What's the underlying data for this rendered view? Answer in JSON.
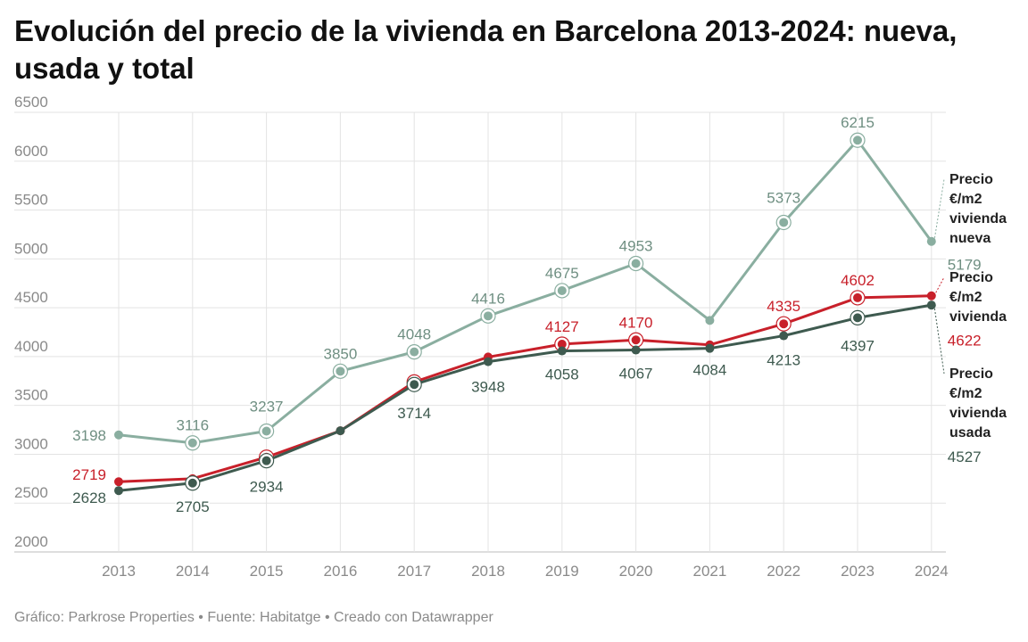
{
  "title": "Evolución del precio de la vivienda en Barcelona 2013-2024: nueva, usada y total",
  "footer": "Gráfico: Parkrose Properties • Fuente: Habitatge • Creado con Datawrapper",
  "chart_data": {
    "type": "line",
    "title": "Evolución del precio de la vivienda en Barcelona 2013-2024: nueva, usada y total",
    "xlabel": "",
    "ylabel": "",
    "x": [
      "2013",
      "2014",
      "2015",
      "2016",
      "2017",
      "2018",
      "2019",
      "2020",
      "2021",
      "2022",
      "2023",
      "2024"
    ],
    "yticks": [
      2000,
      2500,
      3000,
      3500,
      4000,
      4500,
      5000,
      5500,
      6000,
      6500
    ],
    "ylim": [
      2000,
      6500
    ],
    "grid": true,
    "series": [
      {
        "name": "Precio €/m2 vivienda nueva",
        "label_lines": [
          "Precio",
          "€/m2",
          "vivienda",
          "nueva"
        ],
        "color": "#8aaea0",
        "values": [
          3198,
          3116,
          3237,
          3850,
          4048,
          4416,
          4675,
          4953,
          4370,
          5373,
          6215,
          5179
        ],
        "labels": [
          "3198",
          "3116",
          "3237",
          "3850",
          "4048",
          "4416",
          "4675",
          "4953",
          "",
          "5373",
          "6215",
          "5179"
        ],
        "end_value": "5179"
      },
      {
        "name": "Precio €/m2 vivienda",
        "label_lines": [
          "Precio",
          "€/m2",
          "vivienda"
        ],
        "color": "#c8202a",
        "values": [
          2719,
          2750,
          2970,
          3240,
          3740,
          3995,
          4127,
          4170,
          4120,
          4335,
          4602,
          4622
        ],
        "labels": [
          "2719",
          "",
          "",
          "",
          "",
          "",
          "4127",
          "4170",
          "",
          "4335",
          "4602",
          "4622"
        ],
        "end_value": "4622"
      },
      {
        "name": "Precio €/m2 vivienda usada",
        "label_lines": [
          "Precio",
          "€/m2",
          "vivienda",
          "usada"
        ],
        "color": "#3e5a4f",
        "values": [
          2628,
          2705,
          2934,
          3240,
          3714,
          3948,
          4058,
          4067,
          4084,
          4213,
          4397,
          4527
        ],
        "labels": [
          "2628",
          "2705",
          "2934",
          "",
          "3714",
          "3948",
          "4058",
          "4067",
          "4084",
          "4213",
          "4397",
          "4527"
        ],
        "end_value": "4527"
      }
    ]
  }
}
